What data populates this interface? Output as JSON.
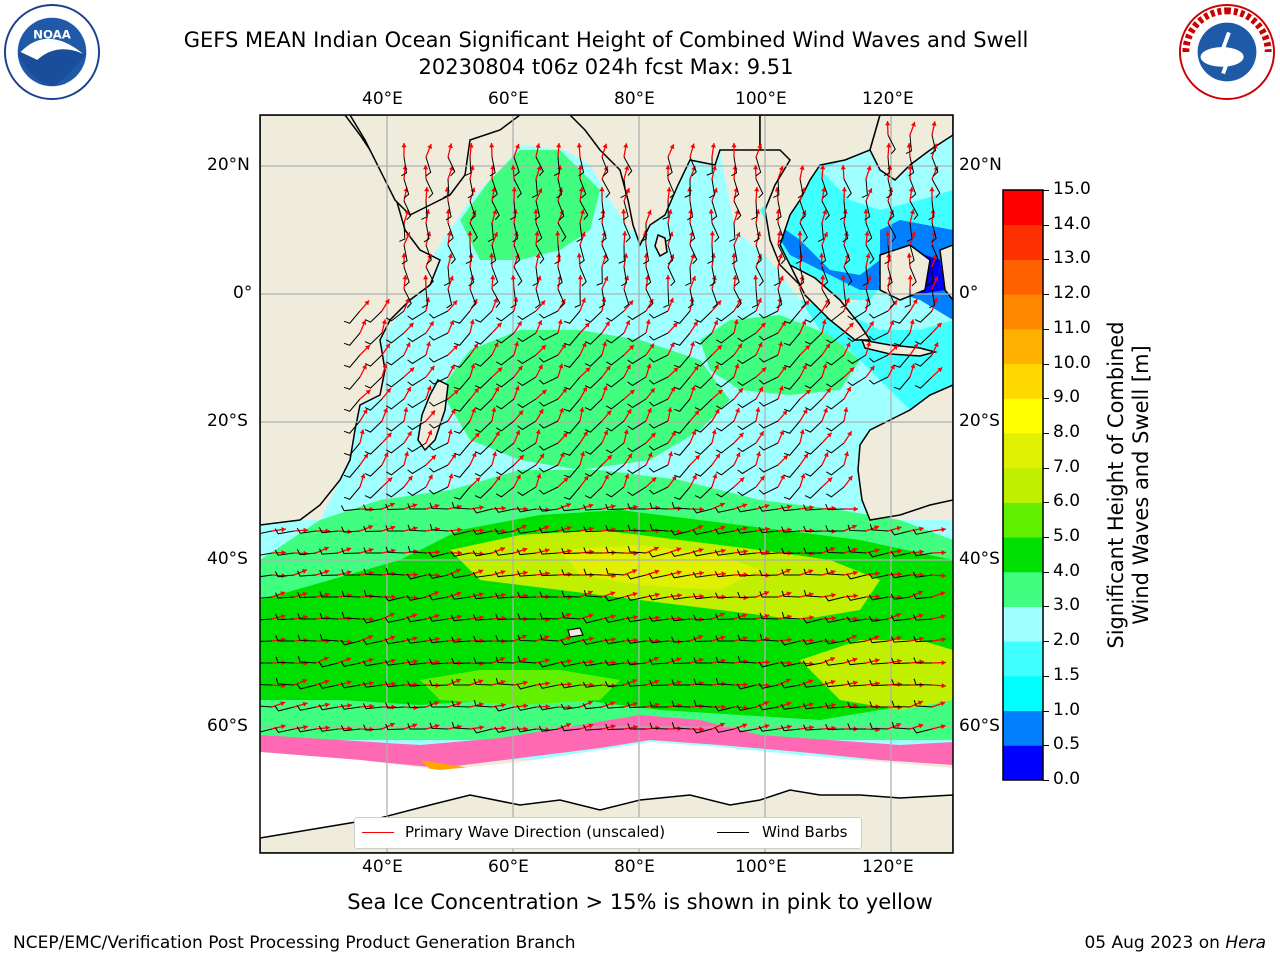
{
  "title": {
    "line1": "GEFS MEAN Indian Ocean Significant Height of Combined Wind Waves and Swell",
    "line2": "20230804 t06z 024h fcst   Max: 9.51"
  },
  "logos": {
    "left": {
      "name": "noaa-logo",
      "text": "NOAA",
      "ring_text": "NATIONAL OCEANIC AND ATMOSPHERIC ADMINISTRATION"
    },
    "right": {
      "name": "nws-logo",
      "ring_text": "NATIONAL WEATHER SERVICE"
    }
  },
  "map": {
    "lon_labels": [
      "40°E",
      "60°E",
      "80°E",
      "100°E",
      "120°E"
    ],
    "lat_labels_left": [
      "20°N",
      "0°",
      "20°S",
      "40°S",
      "60°S"
    ],
    "lat_labels_right": [
      "20°N",
      "0°",
      "20°S",
      "40°S",
      "60°S"
    ],
    "land_color": "#efecdc",
    "ice_colors": [
      "#ff69b4",
      "#ffa500",
      "#ffff00"
    ]
  },
  "colorbar": {
    "title_line1": "Significant Height of Combined",
    "title_line2": "Wind Waves and Swell [m]",
    "ticks": [
      "15.0",
      "14.0",
      "13.0",
      "12.0",
      "11.0",
      "10.0",
      "9.0",
      "8.0",
      "7.0",
      "6.0",
      "5.0",
      "4.0",
      "3.0",
      "2.0",
      "1.5",
      "1.0",
      "0.5",
      "0.0"
    ],
    "colors": [
      "#0000ff",
      "#0080ff",
      "#00ffff",
      "#40ffff",
      "#a0ffff",
      "#40ff80",
      "#00e000",
      "#60f000",
      "#c0f000",
      "#e0f000",
      "#ffff00",
      "#ffd800",
      "#ffb000",
      "#ff8800",
      "#ff6000",
      "#ff3000",
      "#ff0000"
    ]
  },
  "legend": {
    "item1": "Primary Wave Direction (unscaled)",
    "item1_color": "#ff0000",
    "item2": "Wind Barbs",
    "item2_color": "#000000"
  },
  "caption": "Sea Ice Concentration > 15% is shown in pink to yellow",
  "footer": {
    "credit": "NCEP/EMC/Verification Post Processing Product Generation Branch",
    "date": "05 Aug 2023 on ",
    "host": "Hera"
  }
}
